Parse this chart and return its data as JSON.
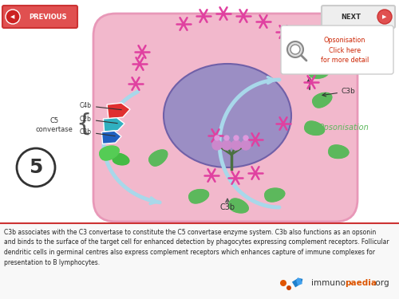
{
  "bg_color": "#ffffff",
  "cell_body_color": "#f2b8cc",
  "cell_nucleus_color": "#9b8ec4",
  "cell_nucleus_edge": "#8070b0",
  "arrow_color": "#a8d8ea",
  "title_text": "C3b associates with the C3 convertase to constitute the C5 convertase enzyme system. C3b also functions as an opsonin\nand binds to the surface of the target cell for enhanced detection by phagocytes expressing complement receptors. Follicular\ndendritic cells in germinal centres also express complement receptors which enhances capture of immune complexes for\npresentation to B lymphocytes.",
  "step_number": "5",
  "c5_label": "C5\nconvertase",
  "c4b_label": "C4b",
  "c2b_label": "C2b",
  "c3b_label": "C3b",
  "c3b_bottom_label": "C3b",
  "opsonisation_label": "Opsonisation",
  "opsonisation_click": "Opsonisation\nClick here\nfor more detail",
  "prev_label": "PREVIOUS",
  "next_label": "NEXT",
  "magenta_color": "#e040a0",
  "green_color": "#5cb85c",
  "red_comp_color": "#e03030",
  "cyan_comp_color": "#30b0c0",
  "blue_comp_color": "#2060c0",
  "opsonisation_text_color": "#5cb85c",
  "click_text_color": "#cc2200",
  "bottom_border_color": "#cc3333",
  "footer_bg": "#f8f8f8",
  "prev_btn_color": "#e05050",
  "next_btn_color": "#eeeeee"
}
